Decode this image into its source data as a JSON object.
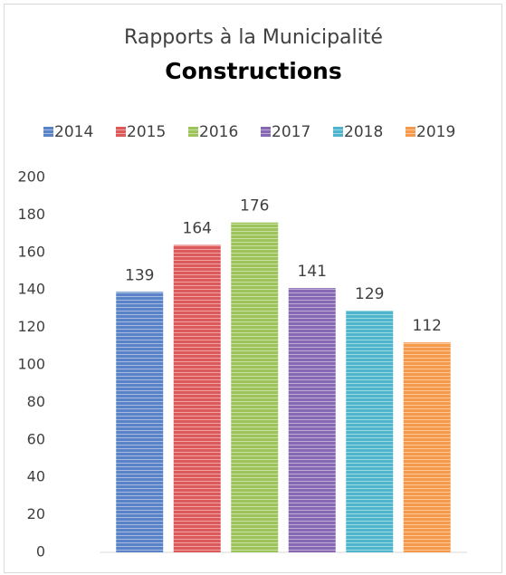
{
  "chart_data": {
    "type": "bar",
    "title": "Rapports à la Municipalité",
    "subtitle": "Constructions",
    "categories": [
      null
    ],
    "series": [
      {
        "name": "2014",
        "color": "#5b83c8",
        "values": [
          139
        ]
      },
      {
        "name": "2015",
        "color": "#de5959",
        "values": [
          164
        ]
      },
      {
        "name": "2016",
        "color": "#9cc45a",
        "values": [
          176
        ]
      },
      {
        "name": "2017",
        "color": "#8768b3",
        "values": [
          141
        ]
      },
      {
        "name": "2018",
        "color": "#4fb5cc",
        "values": [
          129
        ]
      },
      {
        "name": "2019",
        "color": "#f59a4a",
        "values": [
          112
        ]
      }
    ],
    "ylim": [
      0,
      200
    ],
    "yticks": [
      0,
      20,
      40,
      60,
      80,
      100,
      120,
      140,
      160,
      180,
      200
    ],
    "grid": false,
    "legend": "top"
  }
}
